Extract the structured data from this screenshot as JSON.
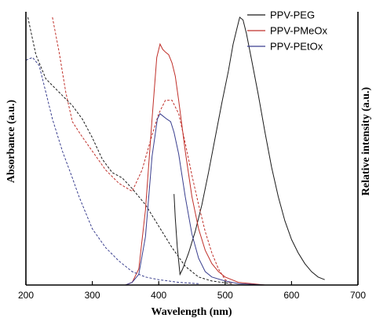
{
  "chart_data": {
    "type": "line",
    "xlabel": "Wavelength (nm)",
    "ylabel_left": "Absorbance (a.u.)",
    "ylabel_right": "Relative intensity (a.u.)",
    "xlim": [
      200,
      700
    ],
    "xticks": [
      200,
      300,
      400,
      500,
      600,
      700
    ],
    "ylim": [
      0,
      1.0
    ],
    "grid": false,
    "legend_position": "top-right",
    "series": [
      {
        "name": "PPV-PEG",
        "color": "#1a1a1a",
        "absorbance": [
          [
            203,
            1.0
          ],
          [
            215,
            0.86
          ],
          [
            230,
            0.77
          ],
          [
            250,
            0.72
          ],
          [
            270,
            0.67
          ],
          [
            285,
            0.62
          ],
          [
            300,
            0.55
          ],
          [
            315,
            0.47
          ],
          [
            330,
            0.42
          ],
          [
            345,
            0.4
          ],
          [
            360,
            0.36
          ],
          [
            380,
            0.3
          ],
          [
            400,
            0.22
          ],
          [
            420,
            0.14
          ],
          [
            440,
            0.07
          ],
          [
            460,
            0.03
          ],
          [
            480,
            0.015
          ],
          [
            510,
            0.005
          ]
        ],
        "emission": [
          [
            423,
            0.34
          ],
          [
            425,
            0.25
          ],
          [
            428,
            0.14
          ],
          [
            432,
            0.04
          ],
          [
            436,
            0.06
          ],
          [
            445,
            0.12
          ],
          [
            455,
            0.2
          ],
          [
            465,
            0.3
          ],
          [
            475,
            0.42
          ],
          [
            485,
            0.55
          ],
          [
            495,
            0.68
          ],
          [
            505,
            0.8
          ],
          [
            512,
            0.9
          ],
          [
            518,
            0.96
          ],
          [
            522,
            1.0
          ],
          [
            527,
            0.99
          ],
          [
            532,
            0.94
          ],
          [
            540,
            0.84
          ],
          [
            550,
            0.71
          ],
          [
            560,
            0.57
          ],
          [
            570,
            0.44
          ],
          [
            580,
            0.33
          ],
          [
            590,
            0.24
          ],
          [
            600,
            0.17
          ],
          [
            610,
            0.12
          ],
          [
            620,
            0.08
          ],
          [
            630,
            0.05
          ],
          [
            640,
            0.03
          ],
          [
            650,
            0.02
          ]
        ]
      },
      {
        "name": "PPV-PMeOx",
        "color": "#c0302a",
        "absorbance": [
          [
            240,
            1.0
          ],
          [
            250,
            0.87
          ],
          [
            260,
            0.72
          ],
          [
            270,
            0.61
          ],
          [
            283,
            0.56
          ],
          [
            300,
            0.5
          ],
          [
            320,
            0.43
          ],
          [
            340,
            0.38
          ],
          [
            360,
            0.35
          ],
          [
            375,
            0.43
          ],
          [
            390,
            0.56
          ],
          [
            400,
            0.64
          ],
          [
            410,
            0.69
          ],
          [
            420,
            0.69
          ],
          [
            430,
            0.64
          ],
          [
            440,
            0.53
          ],
          [
            450,
            0.41
          ],
          [
            460,
            0.3
          ],
          [
            470,
            0.2
          ],
          [
            480,
            0.12
          ],
          [
            490,
            0.06
          ],
          [
            500,
            0.02
          ],
          [
            510,
            0.005
          ]
        ],
        "emission": [
          [
            350,
            0.0
          ],
          [
            360,
            0.01
          ],
          [
            370,
            0.06
          ],
          [
            380,
            0.28
          ],
          [
            390,
            0.62
          ],
          [
            397,
            0.85
          ],
          [
            402,
            0.9
          ],
          [
            406,
            0.88
          ],
          [
            410,
            0.87
          ],
          [
            415,
            0.86
          ],
          [
            420,
            0.83
          ],
          [
            425,
            0.78
          ],
          [
            430,
            0.69
          ],
          [
            440,
            0.5
          ],
          [
            450,
            0.33
          ],
          [
            460,
            0.21
          ],
          [
            470,
            0.13
          ],
          [
            480,
            0.08
          ],
          [
            490,
            0.05
          ],
          [
            500,
            0.03
          ],
          [
            520,
            0.01
          ],
          [
            540,
            0.005
          ],
          [
            560,
            0.0
          ]
        ]
      },
      {
        "name": "PPV-PEtOx",
        "color": "#3a3f8f",
        "absorbance": [
          [
            200,
            0.84
          ],
          [
            210,
            0.85
          ],
          [
            220,
            0.82
          ],
          [
            230,
            0.72
          ],
          [
            240,
            0.62
          ],
          [
            255,
            0.5
          ],
          [
            270,
            0.4
          ],
          [
            280,
            0.33
          ],
          [
            290,
            0.27
          ],
          [
            300,
            0.21
          ],
          [
            320,
            0.14
          ],
          [
            340,
            0.09
          ],
          [
            360,
            0.05
          ],
          [
            380,
            0.03
          ],
          [
            400,
            0.02
          ],
          [
            430,
            0.01
          ],
          [
            460,
            0.005
          ]
        ],
        "emission": [
          [
            350,
            0.0
          ],
          [
            360,
            0.01
          ],
          [
            370,
            0.04
          ],
          [
            380,
            0.18
          ],
          [
            390,
            0.48
          ],
          [
            398,
            0.62
          ],
          [
            402,
            0.64
          ],
          [
            407,
            0.63
          ],
          [
            412,
            0.62
          ],
          [
            418,
            0.61
          ],
          [
            423,
            0.57
          ],
          [
            430,
            0.49
          ],
          [
            440,
            0.33
          ],
          [
            450,
            0.19
          ],
          [
            460,
            0.1
          ],
          [
            470,
            0.05
          ],
          [
            480,
            0.03
          ],
          [
            500,
            0.015
          ],
          [
            520,
            0.005
          ],
          [
            560,
            0.0
          ]
        ]
      }
    ]
  }
}
